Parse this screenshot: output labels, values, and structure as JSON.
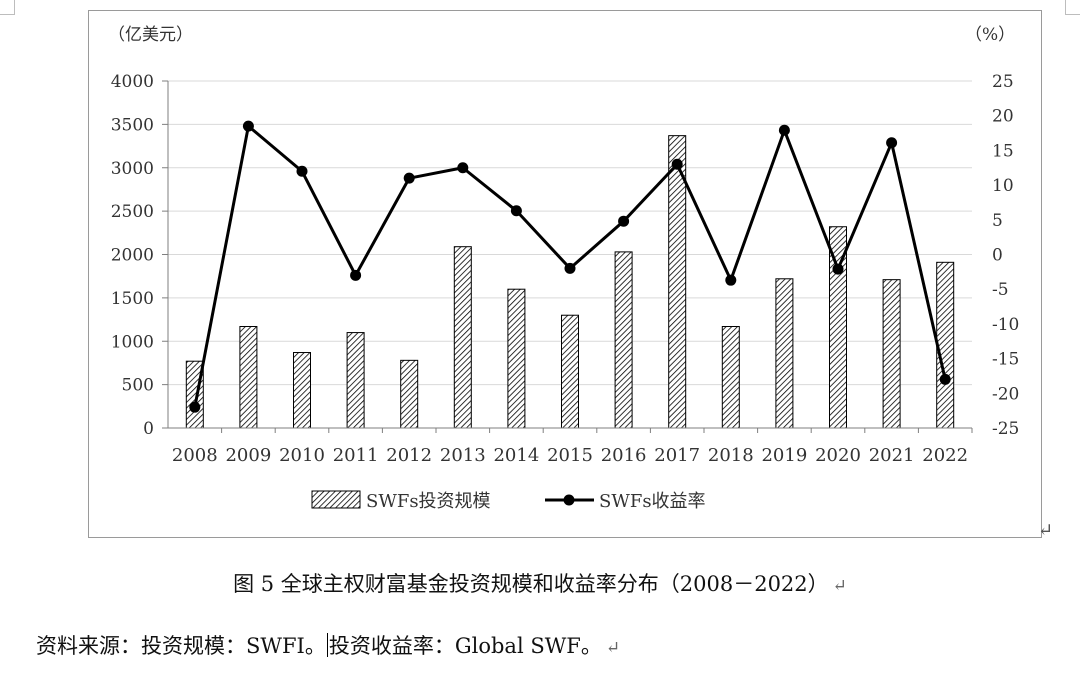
{
  "chart_data": {
    "type": "bar+line",
    "title": "",
    "categories": [
      "2008",
      "2009",
      "2010",
      "2011",
      "2012",
      "2013",
      "2014",
      "2015",
      "2016",
      "2017",
      "2018",
      "2019",
      "2020",
      "2021",
      "2022"
    ],
    "left_axis": {
      "unit_label": "（亿美元）",
      "range": [
        0,
        4000
      ],
      "ticks": [
        "0",
        "500",
        "1000",
        "1500",
        "2000",
        "2500",
        "3000",
        "3500",
        "4000"
      ]
    },
    "right_axis": {
      "unit_label": "（%）",
      "range": [
        -25,
        25
      ],
      "ticks": [
        "-25",
        "-20",
        "-15",
        "-10",
        "-5",
        "0",
        "5",
        "10",
        "15",
        "20",
        "25"
      ]
    },
    "series": [
      {
        "name": "SWFs投资规模",
        "kind": "bar",
        "axis": "left",
        "values": [
          770,
          1170,
          870,
          1100,
          780,
          2090,
          1600,
          1300,
          2030,
          3370,
          1170,
          1720,
          2320,
          1710,
          1910
        ]
      },
      {
        "name": "SWFs收益率",
        "kind": "line",
        "axis": "right",
        "values": [
          -22,
          18.5,
          12,
          -3,
          11,
          12.5,
          6.3,
          -2,
          4.8,
          13,
          -3.7,
          17.9,
          -2.1,
          16.1,
          -18
        ]
      }
    ],
    "legend_position": "bottom",
    "grid": true
  },
  "caption": {
    "text": "图 5 全球主权财富基金投资规模和收益率分布（2008－2022）"
  },
  "source": {
    "part1": "资料来源：投资规模：SWFI。",
    "part2": "投资收益率：Global SWF。"
  },
  "marks": {
    "return": "↵"
  },
  "colors": {
    "line": "#000000",
    "bar_stroke": "#000000",
    "grid": "#d9d9d9"
  }
}
